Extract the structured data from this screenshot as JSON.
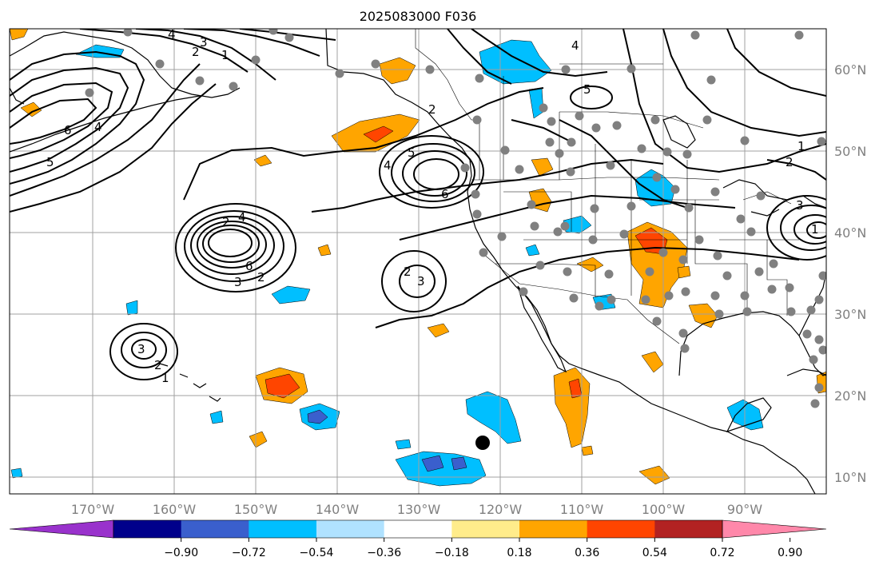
{
  "map": {
    "title": "2025083000 F036",
    "latitude_labels": [
      "60°N",
      "50°N",
      "40°N",
      "30°N",
      "20°N",
      "10°N"
    ],
    "longitude_labels": [
      "170°W",
      "160°W",
      "150°W",
      "140°W",
      "130°W",
      "120°W",
      "110°W",
      "100°W",
      "90°W"
    ],
    "contour_labels": [
      "4",
      "3",
      "2",
      "1",
      "6",
      "5",
      "4",
      "2",
      "5",
      "4",
      "6",
      "2",
      "4",
      "5",
      "4",
      "6",
      "3",
      "2",
      "2",
      "3",
      "3",
      "2",
      "1",
      "1",
      "2",
      "3",
      "1"
    ],
    "colorbar": {
      "ticks": [
        "−0.90",
        "−0.72",
        "−0.54",
        "−0.36",
        "−0.18",
        "0.18",
        "0.36",
        "0.54",
        "0.72",
        "0.90"
      ],
      "colors": [
        "#9932cc",
        "#00008b",
        "#3a5fcd",
        "#00bfff",
        "#b0e2ff",
        "#ffffff",
        "#ffec8b",
        "#ffa500",
        "#ff4500",
        "#b22222",
        "#ff88aa"
      ]
    },
    "colors": {
      "positive_low": "#ffa500",
      "positive_high": "#ff4500",
      "negative_low": "#00bfff",
      "negative_high": "#3a5fcd",
      "station": "#808080",
      "marker": "#000000"
    }
  }
}
